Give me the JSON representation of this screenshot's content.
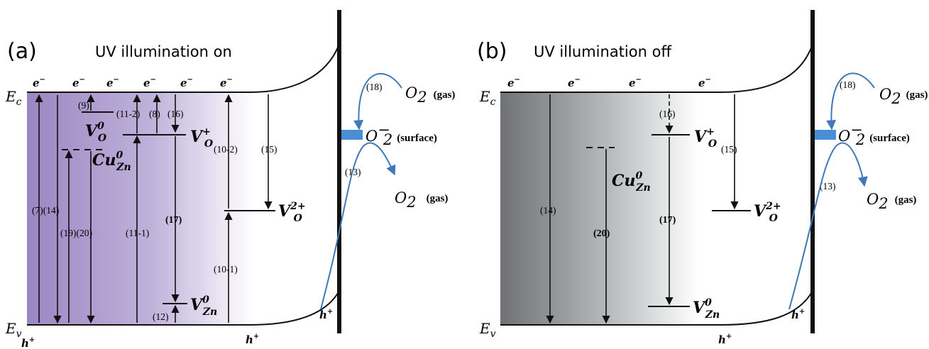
{
  "panel_a": {
    "label": "(a)",
    "title": "UV illumination on",
    "ec": "E",
    "ec_sub": "c",
    "ev": "E",
    "ev_sub": "v",
    "electron": "e",
    "electron_sup": "−",
    "hole": "h",
    "hole_sup": "+",
    "steps": {
      "s9": "(9)",
      "s11_2": "(11-2)",
      "s8": "(8)",
      "s16": "(16)",
      "s10_2": "(10-2)",
      "s15": "(15)",
      "s18": "(18)",
      "s13": "(13)",
      "s7_14": "(7)(14)",
      "s19_20": "(19)(20)",
      "s11_1": "(11-1)",
      "s17": "(17)",
      "s10_1": "(10-1)",
      "s12": "(12)"
    },
    "vo0": "V",
    "vo0_sub": "O",
    "vo0_sup": "0",
    "vo1": "V",
    "vo1_sub": "O",
    "vo1_sup": "+",
    "vo2": "V",
    "vo2_sub": "O",
    "vo2_sup": "2+",
    "cu": "Cu",
    "cu_sub": "Zn",
    "cu_sup": "0",
    "vzn": "V",
    "vzn_sub": "Zn",
    "vzn_sup": "0",
    "o2_gas_top": "O",
    "o2_sub": "2",
    "gas": "(gas)",
    "o2_surface": "O",
    "o2_surface_sup": "−",
    "surface": "(surface)"
  },
  "panel_b": {
    "label": "(b)",
    "title": "UV illumination off",
    "ec": "E",
    "ec_sub": "c",
    "ev": "E",
    "ev_sub": "v",
    "electron": "e",
    "electron_sup": "−",
    "hole": "h",
    "hole_sup": "+",
    "steps": {
      "s18": "(18)",
      "s16": "(16)",
      "s15": "(15)",
      "s13": "(13)",
      "s14": "(14)",
      "s20": "(20)",
      "s17": "(17)"
    },
    "vo1": "V",
    "vo1_sub": "O",
    "vo1_sup": "+",
    "vo2": "V",
    "vo2_sub": "O",
    "vo2_sup": "2+",
    "cu": "Cu",
    "cu_sub": "Zn",
    "cu_sup": "0",
    "vzn": "V",
    "vzn_sub": "Zn",
    "vzn_sup": "0",
    "o2_sub": "2",
    "gas": "(gas)",
    "o2_surface_sup": "−",
    "surface": "(surface)"
  },
  "colors": {
    "panel_a_gradient_start": "#9b86c2",
    "panel_b_gradient_start": "#6f7275",
    "reaction_curve": "#3f78b8",
    "surface_box": "#4a8fd6"
  }
}
